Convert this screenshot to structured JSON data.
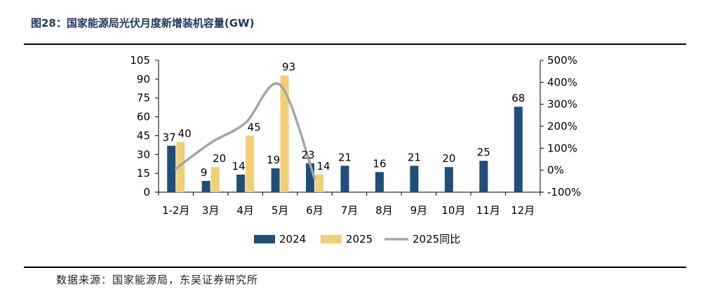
{
  "figure": {
    "title": "图28：国家能源局光伏月度新增装机容量(GW)",
    "source": "数据来源：国家能源局，东吴证券研究所"
  },
  "colors": {
    "series_2024": "#1f4e79",
    "series_2025": "#f2cf75",
    "yoy_line": "#a6a6a6",
    "axis": "#000000"
  },
  "chart_data": {
    "type": "bar",
    "categories": [
      "1-2月",
      "3月",
      "4月",
      "5月",
      "6月",
      "7月",
      "8月",
      "9月",
      "10月",
      "11月",
      "12月"
    ],
    "series": [
      {
        "name": "2024",
        "values": [
          37,
          9,
          14,
          19,
          23,
          21,
          16,
          21,
          20,
          25,
          68
        ]
      },
      {
        "name": "2025",
        "values": [
          40,
          20,
          45,
          93,
          14,
          null,
          null,
          null,
          null,
          null,
          null
        ]
      }
    ],
    "line_series": [
      {
        "name": "2025同比",
        "axis": "right",
        "values": [
          0.07,
          1.24,
          2.15,
          3.88,
          -0.38,
          null,
          null,
          null,
          null,
          null,
          null
        ]
      }
    ],
    "ylim": [
      0,
      105
    ],
    "yticks": [
      0,
      15,
      30,
      45,
      60,
      75,
      90,
      105
    ],
    "y2lim": [
      -1,
      5
    ],
    "y2ticks": [
      "-100%",
      "0%",
      "100%",
      "200%",
      "300%",
      "400%",
      "500%"
    ],
    "legend_position": "bottom",
    "grid": false
  }
}
